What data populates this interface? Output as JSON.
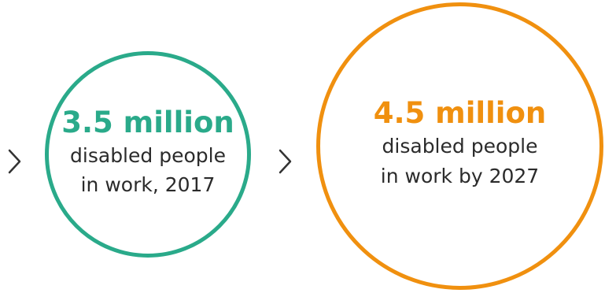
{
  "colors": {
    "stage_2017": "#2aaa8a",
    "stage_2027": "#f0900f",
    "text": "#2b2b2b",
    "arrow": "#333333"
  },
  "icons": [
    "chevron-right-icon",
    "chevron-right-icon"
  ],
  "stages": [
    {
      "figure": "3.5 million",
      "line1": "disabled people",
      "line2": "in work, 2017"
    },
    {
      "figure": "4.5 million",
      "line1": "disabled people",
      "line2": "in work by 2027"
    }
  ]
}
